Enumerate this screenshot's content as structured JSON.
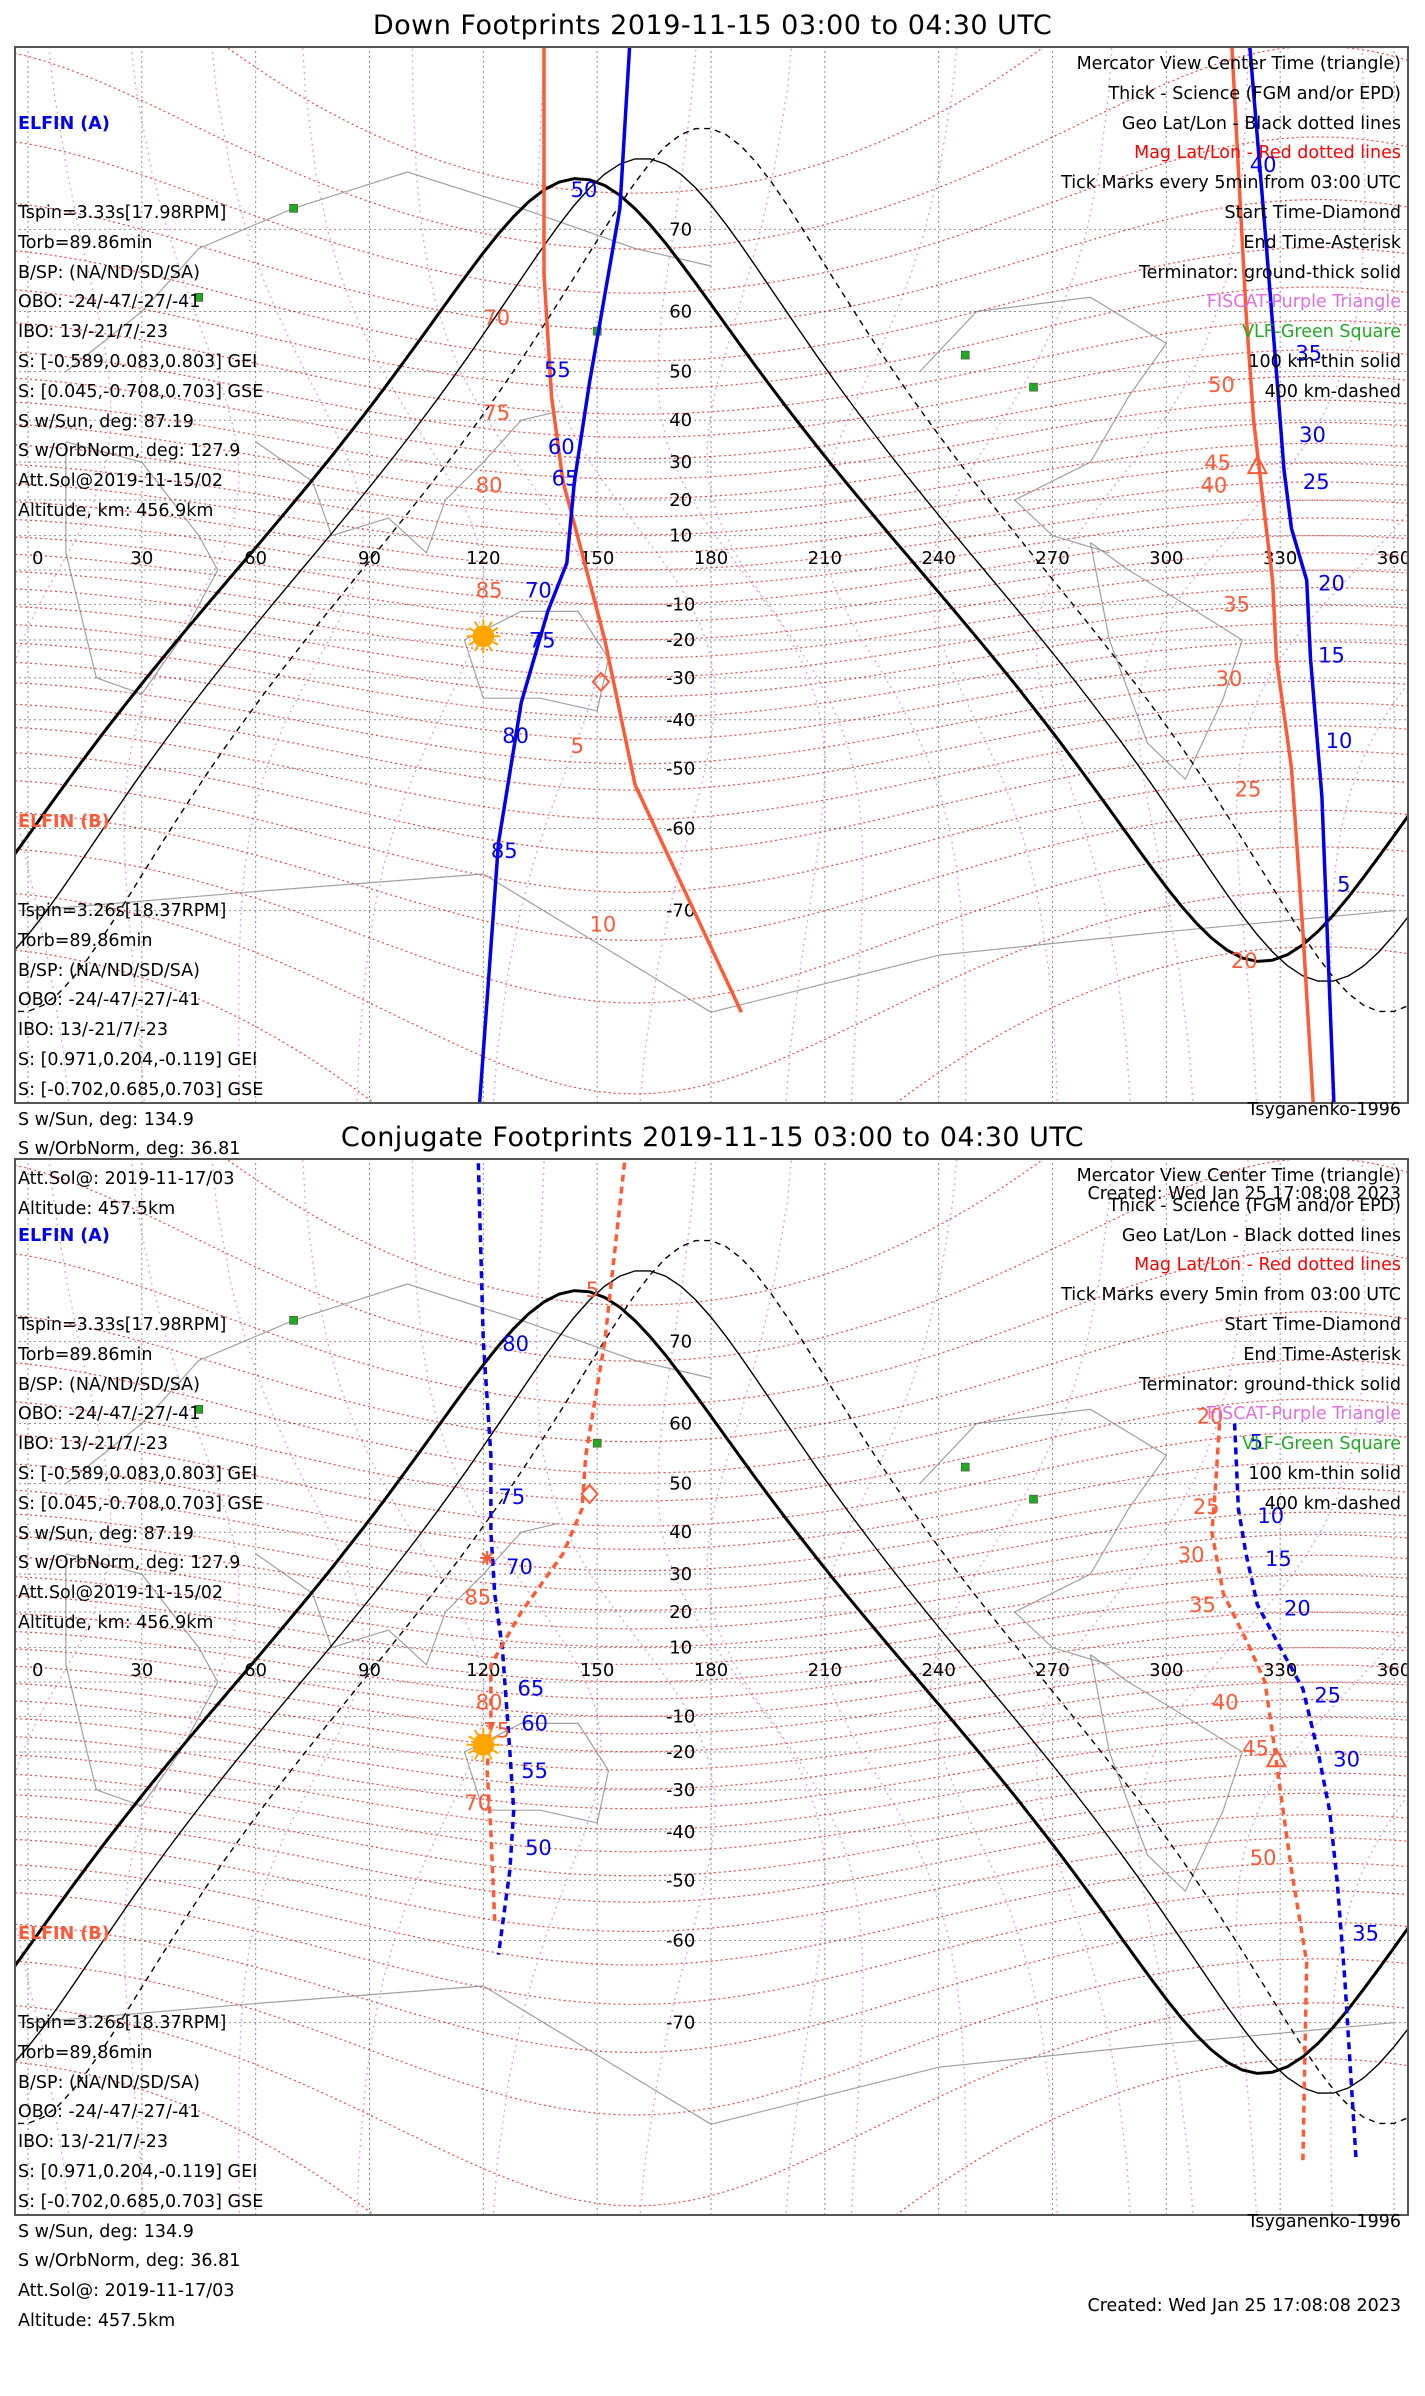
{
  "colors": {
    "elfin_a": "#0000ee",
    "elfin_b": "#ff5a36",
    "geo_grid": "#222222",
    "mag_grid": "#ff0000",
    "fiscat": "#e070e0",
    "vlf": "#22aa22",
    "sun": "#ffa500",
    "coast": "#888888"
  },
  "icons": {
    "start": "diamond",
    "end": "asterisk",
    "center": "triangle",
    "sun": "sun",
    "fiscat": "purple-triangle",
    "vlf": "green-square"
  },
  "axes": {
    "lon_ticks": [
      "0",
      "30",
      "60",
      "90",
      "120",
      "150",
      "180",
      "210",
      "240",
      "270",
      "300",
      "330",
      "360"
    ],
    "lat_ticks": [
      "70",
      "60",
      "50",
      "40",
      "30",
      "20",
      "10",
      "-10",
      "-20",
      "-30",
      "-40",
      "-50",
      "-60",
      "-70"
    ]
  },
  "panels": [
    {
      "title": "Down Footprints 2019-11-15 03:00 to 04:30 UTC",
      "elfin_a": {
        "header": "ELFIN (A)",
        "lines": [
          "Tspin=3.33s[17.98RPM]",
          "Torb=89.86min",
          "B/SP: (NA/ND/SD/SA)",
          "OBO: -24/-47/-27/-41",
          "IBO: 13/-21/7/-23",
          "S: [-0.589,0.083,0.803] GEI",
          "S: [0.045,-0.708,0.703] GSE",
          "S w/Sun, deg: 87.19",
          "S w/OrbNorm, deg: 127.9",
          "Att.Sol@2019-11-15/02",
          "Altitude, km: 456.9km"
        ]
      },
      "elfin_b": {
        "header": "ELFIN (B)",
        "lines": [
          "Tspin=3.26s[18.37RPM]",
          "Torb=89.86min",
          "B/SP: (NA/ND/SD/SA)",
          "OBO: -24/-47/-27/-41",
          "IBO: 13/-21/7/-23",
          "S: [0.971,0.204,-0.119] GEI",
          "S: [-0.702,0.685,0.703] GSE",
          "S w/Sun, deg: 134.9",
          "S w/OrbNorm, deg: 36.81",
          "Att.Sol@: 2019-11-17/03",
          "Altitude: 457.5km"
        ]
      },
      "legend": [
        "Mercator View Center Time (triangle)",
        "Thick - Science (FGM and/or EPD)",
        "Geo Lat/Lon - Black dotted lines",
        "Mag Lat/Lon - Red dotted lines",
        "Tick Marks every 5min from 03:00 UTC",
        "Start Time-Diamond",
        "End Time-Asterisk",
        "Terminator: ground-thick solid",
        "FISCAT-Purple Triangle",
        "VLF-Green Square",
        "100 km-thin solid",
        "400 km-dashed"
      ],
      "model": "Tsyganenko-1996",
      "created": "Created: Wed Jan 25 17:08:08 2023",
      "tracks": [
        {
          "sat": "B",
          "style": "solid",
          "points": [
            [
              188,
              -78
            ],
            [
              160,
              -53
            ],
            [
              152,
              -20
            ],
            [
              146,
              5
            ],
            [
              141,
              25
            ],
            [
              138,
              45
            ],
            [
              136,
              65
            ],
            [
              136,
              85
            ]
          ],
          "labels": [
            [
              "5",
              [
                143,
                -47
              ]
            ],
            [
              "10",
              [
                148,
                -72
              ]
            ],
            [
              "85",
              [
                118,
                -8
              ]
            ],
            [
              "80",
              [
                118,
                22
              ]
            ],
            [
              "75",
              [
                120,
                40
              ]
            ],
            [
              "70",
              [
                120,
                58
              ]
            ]
          ]
        },
        {
          "sat": "A",
          "style": "solid",
          "points": [
            [
              114,
              -88
            ],
            [
              124,
              -62
            ],
            [
              130,
              -36
            ],
            [
              137,
              -12
            ],
            [
              142,
              2
            ],
            [
              144,
              25
            ],
            [
              148,
              48
            ],
            [
              156,
              72
            ],
            [
              160,
              85
            ]
          ],
          "labels": [
            [
              "85",
              [
                122,
                -64
              ]
            ],
            [
              "80",
              [
                125,
                -45
              ]
            ],
            [
              "75",
              [
                132,
                -22
              ]
            ],
            [
              "70",
              [
                131,
                -8
              ]
            ],
            [
              "65",
              [
                138,
                24
              ]
            ],
            [
              "60",
              [
                137,
                32
              ]
            ],
            [
              "55",
              [
                136,
                49
              ]
            ],
            [
              "50",
              [
                143,
                73
              ]
            ]
          ]
        },
        {
          "sat": "B",
          "style": "solid",
          "points": [
            [
              316,
              85
            ],
            [
              321,
              60
            ],
            [
              323,
              40
            ],
            [
              326,
              15
            ],
            [
              328,
              -3
            ],
            [
              329,
              -25
            ],
            [
              333,
              -50
            ],
            [
              336,
              -72
            ],
            [
              340,
              -85
            ]
          ],
          "labels": [
            [
              "50",
              [
                311,
                46
              ]
            ],
            [
              "45",
              [
                310,
                28
              ]
            ],
            [
              "40",
              [
                309,
                22
              ]
            ],
            [
              "35",
              [
                315,
                -12
              ]
            ],
            [
              "30",
              [
                313,
                -32
              ]
            ],
            [
              "25",
              [
                318,
                -55
              ]
            ],
            [
              "20",
              [
                317,
                -75
              ]
            ]
          ]
        },
        {
          "sat": "A",
          "style": "solid",
          "points": [
            [
              320,
              85
            ],
            [
              326,
              70
            ],
            [
              329,
              50
            ],
            [
              331,
              28
            ],
            [
              333,
              12
            ],
            [
              337,
              -3
            ],
            [
              338,
              -25
            ],
            [
              341,
              -55
            ],
            [
              345,
              -85
            ]
          ],
          "labels": [
            [
              "40",
              [
                322,
                75
              ]
            ],
            [
              "35",
              [
                334,
                52
              ]
            ],
            [
              "30",
              [
                335,
                35
              ]
            ],
            [
              "25",
              [
                336,
                23
              ]
            ],
            [
              "20",
              [
                340,
                -6
              ]
            ],
            [
              "15",
              [
                340,
                -26
              ]
            ],
            [
              "10",
              [
                342,
                -46
              ]
            ],
            [
              "5",
              [
                345,
                -68
              ]
            ]
          ]
        }
      ],
      "markers": {
        "start": [
          [
            151,
            -31
          ]
        ],
        "center": [
          [
            324,
            29
          ]
        ],
        "sun": [
          [
            120,
            -19
          ]
        ]
      }
    },
    {
      "title": "Conjugate Footprints 2019-11-15 03:00 to 04:30 UTC",
      "elfin_a": {
        "header": "ELFIN (A)",
        "lines": [
          "Tspin=3.33s[17.98RPM]",
          "Torb=89.86min",
          "B/SP: (NA/ND/SD/SA)",
          "OBO: -24/-47/-27/-41",
          "IBO: 13/-21/7/-23",
          "S: [-0.589,0.083,0.803] GEI",
          "S: [0.045,-0.708,0.703] GSE",
          "S w/Sun, deg: 87.19",
          "S w/OrbNorm, deg: 127.9",
          "Att.Sol@2019-11-15/02",
          "Altitude, km: 456.9km"
        ]
      },
      "elfin_b": {
        "header": "ELFIN (B)",
        "lines": [
          "Tspin=3.26s[18.37RPM]",
          "Torb=89.86min",
          "B/SP: (NA/ND/SD/SA)",
          "OBO: -24/-47/-27/-41",
          "IBO: 13/-21/7/-23",
          "S: [0.971,0.204,-0.119] GEI",
          "S: [-0.702,0.685,0.703] GSE",
          "S w/Sun, deg: 134.9",
          "S w/OrbNorm, deg: 36.81",
          "Att.Sol@: 2019-11-17/03",
          "Altitude: 457.5km"
        ]
      },
      "legend": [
        "Mercator View Center Time (triangle)",
        "Thick - Science (FGM and/or EPD)",
        "Geo Lat/Lon - Black dotted lines",
        "Mag Lat/Lon - Red dotted lines",
        "Tick Marks every 5min from 03:00 UTC",
        "Start Time-Diamond",
        "End Time-Asterisk",
        "Terminator: ground-thick solid",
        "FISCAT-Purple Triangle",
        "VLF-Green Square",
        "100 km-thin solid",
        "400 km-dashed"
      ],
      "model": "Tsyganenko-1996",
      "created": "Created: Wed Jan 25 17:08:08 2023",
      "tracks": [
        {
          "sat": "A",
          "style": "dashed",
          "points": [
            [
              118,
              85
            ],
            [
              120,
              70
            ],
            [
              122,
              55
            ],
            [
              122,
              40
            ],
            [
              123,
              25
            ],
            [
              125,
              10
            ],
            [
              126,
              -5
            ],
            [
              127,
              -20
            ],
            [
              128,
              -35
            ],
            [
              127,
              -48
            ],
            [
              124,
              -62
            ]
          ],
          "labels": [
            [
              "80",
              [
                125,
                69
              ]
            ],
            [
              "75",
              [
                124,
                46
              ]
            ],
            [
              "70",
              [
                126,
                30
              ]
            ],
            [
              "65",
              [
                129,
                -4
              ]
            ],
            [
              "60",
              [
                130,
                -14
              ]
            ],
            [
              "55",
              [
                130,
                -27
              ]
            ],
            [
              "50",
              [
                131,
                -45
              ]
            ]
          ]
        },
        {
          "sat": "B",
          "style": "dashed",
          "points": [
            [
              160,
              85
            ],
            [
              152,
              70
            ],
            [
              147,
              55
            ],
            [
              146,
              45
            ],
            [
              141,
              35
            ],
            [
              130,
              20
            ],
            [
              122,
              5
            ],
            [
              122,
              -10
            ],
            [
              121,
              -25
            ],
            [
              122,
              -40
            ],
            [
              123,
              -57
            ]
          ],
          "labels": [
            [
              "5",
              [
                147,
                74
              ]
            ],
            [
              "85",
              [
                115,
                22
              ]
            ],
            [
              "80",
              [
                118,
                -8
              ]
            ],
            [
              "75",
              [
                120,
                -16
              ]
            ],
            [
              "70",
              [
                115,
                -35
              ]
            ]
          ]
        },
        {
          "sat": "B",
          "style": "dashed",
          "points": [
            [
              314,
              60
            ],
            [
              313,
              50
            ],
            [
              312,
              40
            ],
            [
              315,
              25
            ],
            [
              322,
              10
            ],
            [
              326,
              0
            ],
            [
              328,
              -15
            ],
            [
              330,
              -30
            ],
            [
              333,
              -48
            ],
            [
              337,
              -63
            ],
            [
              336,
              -80
            ]
          ],
          "labels": [
            [
              "20",
              [
                308,
                60
              ]
            ],
            [
              "25",
              [
                307,
                44
              ]
            ],
            [
              "30",
              [
                303,
                33
              ]
            ],
            [
              "35",
              [
                306,
                20
              ]
            ],
            [
              "40",
              [
                312,
                -8
              ]
            ],
            [
              "45",
              [
                320,
                -21
              ]
            ],
            [
              "50",
              [
                322,
                -47
              ]
            ]
          ]
        },
        {
          "sat": "A",
          "style": "dashed",
          "points": [
            [
              318,
              60
            ],
            [
              319,
              45
            ],
            [
              321,
              35
            ],
            [
              324,
              22
            ],
            [
              330,
              10
            ],
            [
              336,
              -2
            ],
            [
              340,
              -20
            ],
            [
              343,
              -35
            ],
            [
              345,
              -50
            ],
            [
              347,
              -65
            ],
            [
              350,
              -80
            ]
          ],
          "labels": [
            [
              "5",
              [
                322,
                56
              ]
            ],
            [
              "10",
              [
                324,
                42
              ]
            ],
            [
              "15",
              [
                326,
                32
              ]
            ],
            [
              "20",
              [
                331,
                19
              ]
            ],
            [
              "25",
              [
                339,
                -6
              ]
            ],
            [
              "30",
              [
                344,
                -24
              ]
            ],
            [
              "35",
              [
                349,
                -60
              ]
            ]
          ]
        }
      ],
      "markers": {
        "start": [
          [
            148,
            48
          ]
        ],
        "center": [
          [
            329,
            -22
          ]
        ],
        "end": [
          [
            121,
            34
          ]
        ],
        "sun": [
          [
            120,
            -18
          ]
        ]
      }
    }
  ]
}
